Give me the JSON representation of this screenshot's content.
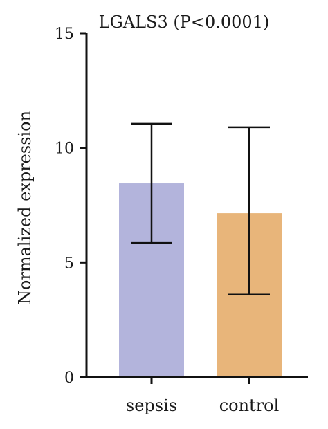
{
  "chart_data": {
    "type": "bar",
    "title": "LGALS3 (P<0.0001)",
    "xlabel": "",
    "ylabel": "Normalized expression",
    "categories": [
      "sepsis",
      "control"
    ],
    "values": [
      8.45,
      7.15
    ],
    "error_low": [
      5.85,
      3.6
    ],
    "error_high": [
      11.05,
      10.9
    ],
    "ylim": [
      0,
      15
    ],
    "yticks": [
      0,
      5,
      10,
      15
    ],
    "colors": [
      "#b3b4dc",
      "#e8b57a"
    ],
    "grid": false,
    "legend": "none"
  }
}
